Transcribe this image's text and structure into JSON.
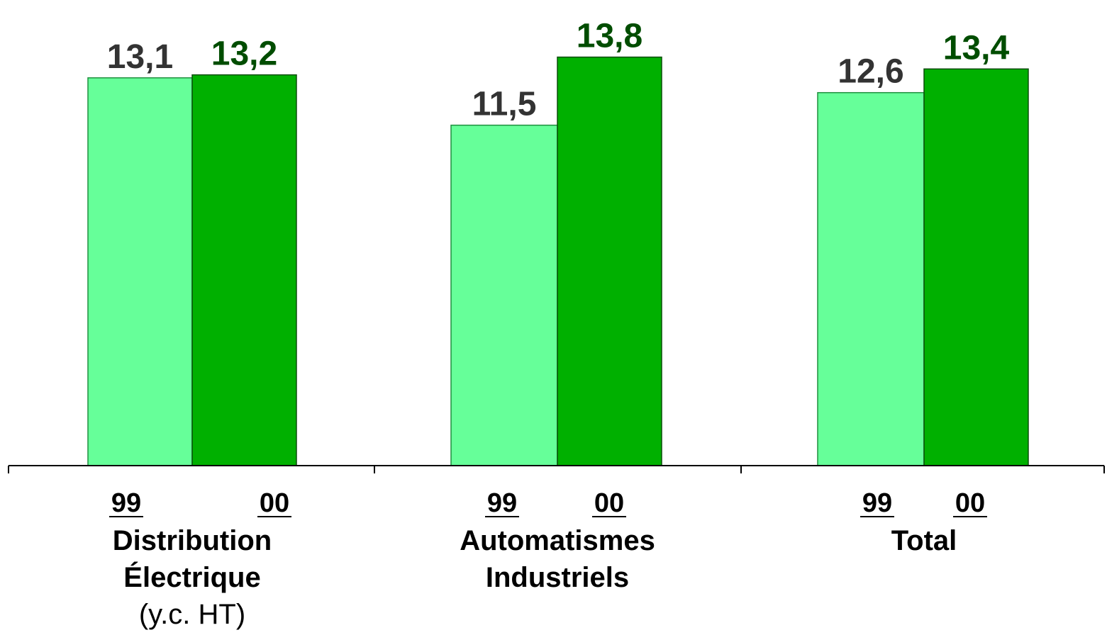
{
  "chart_data": {
    "type": "bar",
    "categories": [
      {
        "lines": [
          "Distribution",
          "Électrique"
        ],
        "sub": "(y.c. HT)"
      },
      {
        "lines": [
          "Automatismes",
          "Industriels"
        ],
        "sub": ""
      },
      {
        "lines": [
          "Total"
        ],
        "sub": ""
      }
    ],
    "series": [
      {
        "label": "99",
        "values": [
          13.1,
          11.5,
          12.6
        ],
        "display": [
          "13,1",
          "11,5",
          "12,6"
        ],
        "color": "#66ff99",
        "label_color": "#333333"
      },
      {
        "label": "00",
        "values": [
          13.2,
          13.8,
          13.4
        ],
        "display": [
          "13,2",
          "13,8",
          "13,4"
        ],
        "color": "#00b000",
        "label_color": "#004d00"
      }
    ],
    "ylim": [
      0,
      15
    ],
    "grid": false,
    "legend": "none"
  }
}
